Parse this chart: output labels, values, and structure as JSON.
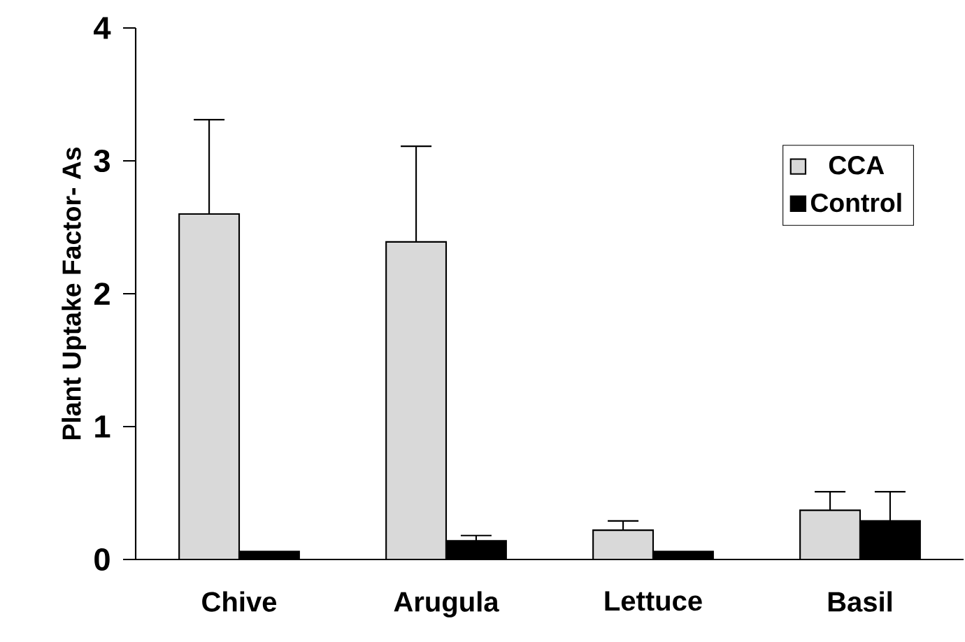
{
  "chart_data": {
    "type": "bar",
    "ylabel": "Plant Uptake Factor- As",
    "categories": [
      "Chive",
      "Arugula",
      "Lettuce",
      "Basil"
    ],
    "series": [
      {
        "name": "CCA",
        "color": "#d9d9d9",
        "values": [
          2.6,
          2.39,
          0.22,
          0.37
        ],
        "errors": [
          0.71,
          0.72,
          0.07,
          0.14
        ]
      },
      {
        "name": "Control",
        "color": "#000000",
        "values": [
          0.06,
          0.14,
          0.06,
          0.29
        ],
        "errors": [
          null,
          0.04,
          null,
          0.22
        ]
      }
    ],
    "ylim": [
      0,
      4
    ],
    "yticks": [
      0,
      1,
      2,
      3,
      4
    ],
    "legend": "top right",
    "grid": false
  }
}
